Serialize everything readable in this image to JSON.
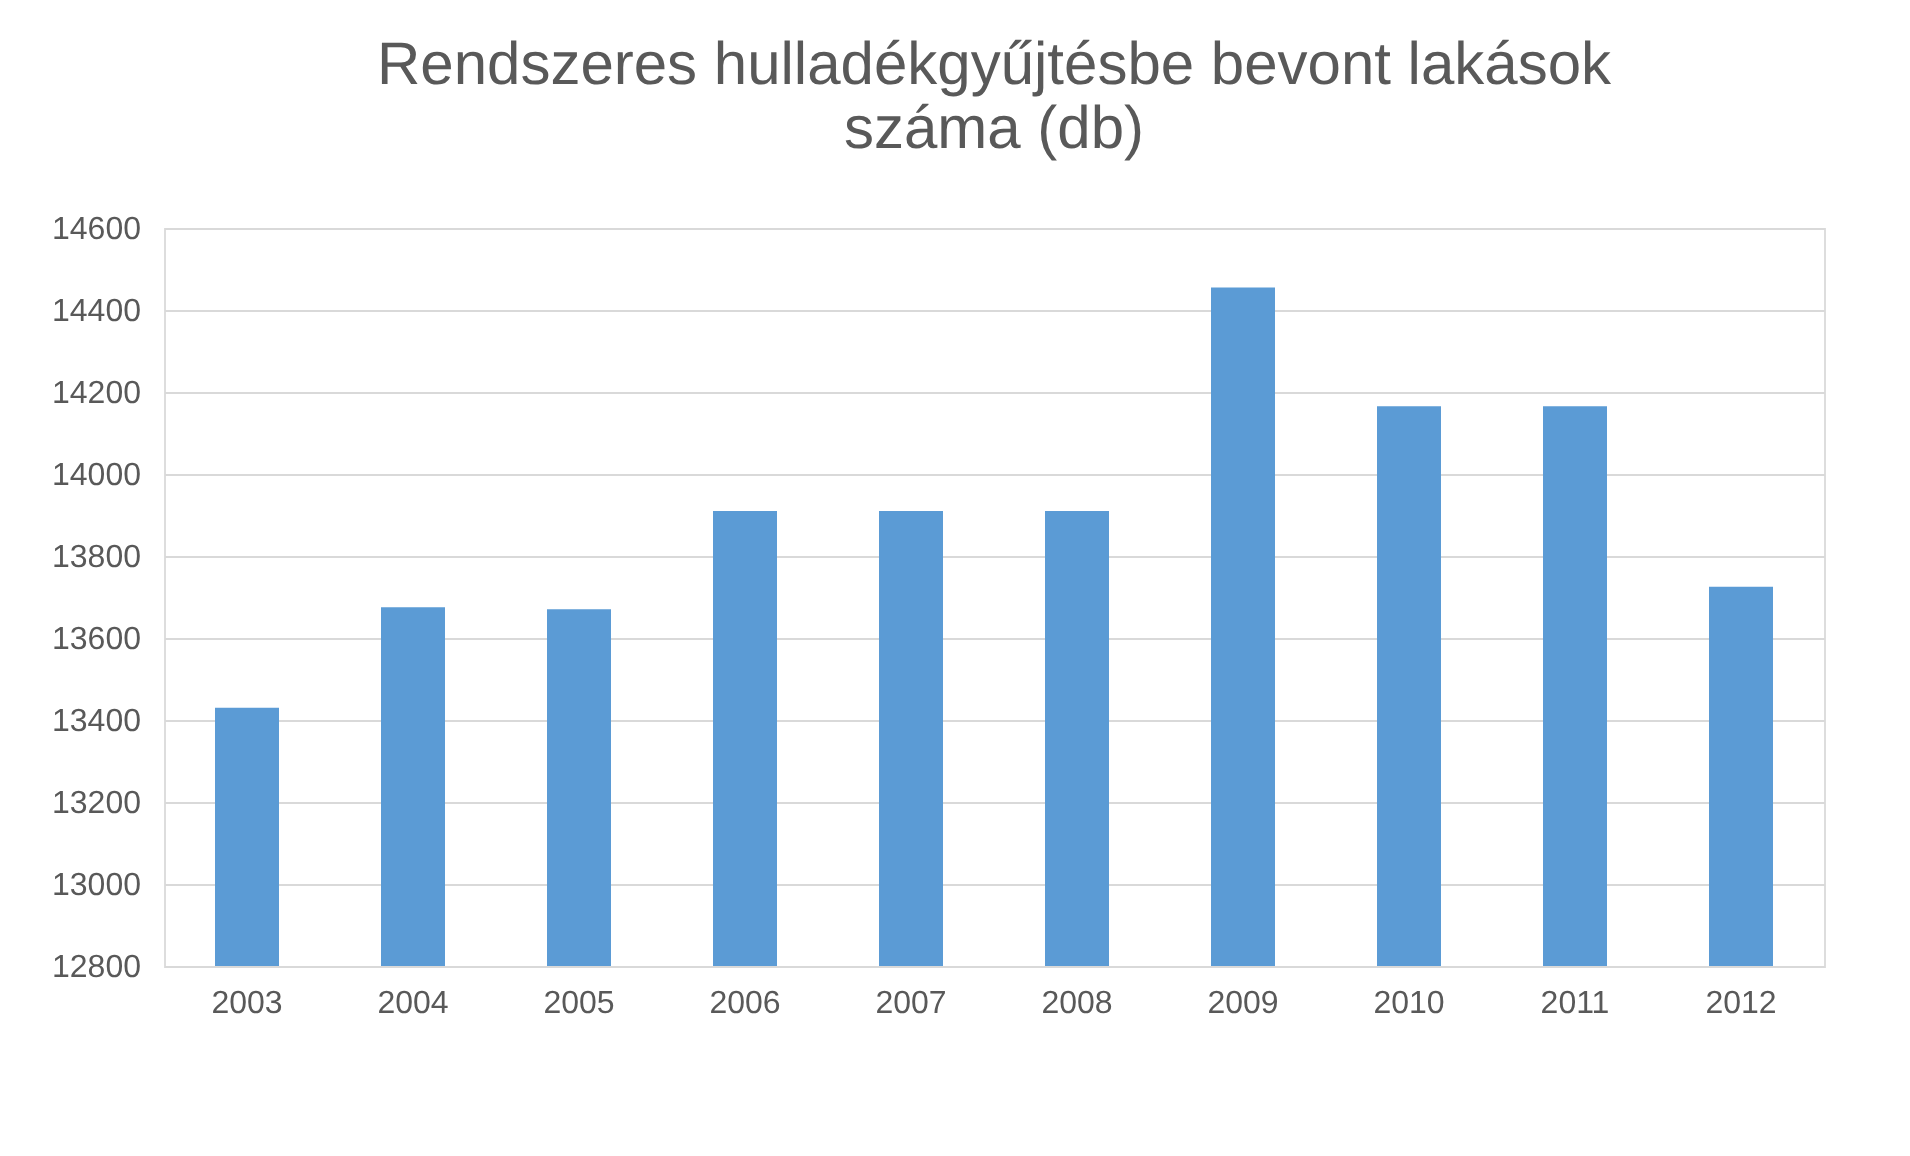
{
  "chart_data": {
    "type": "bar",
    "title": [
      "Rendszeres hulladékgyűjtésbe bevont lakások",
      "száma (db)"
    ],
    "categories": [
      "2003",
      "2004",
      "2005",
      "2006",
      "2007",
      "2008",
      "2009",
      "2010",
      "2011",
      "2012"
    ],
    "values": [
      13430,
      13675,
      13670,
      13910,
      13910,
      13910,
      14455,
      14165,
      14165,
      13725
    ],
    "color": "#5b9bd5",
    "ylim": [
      12800,
      14600
    ],
    "yticks": [
      12800,
      13000,
      13200,
      13400,
      13600,
      13800,
      14000,
      14200,
      14400,
      14600
    ],
    "grid": "y"
  }
}
